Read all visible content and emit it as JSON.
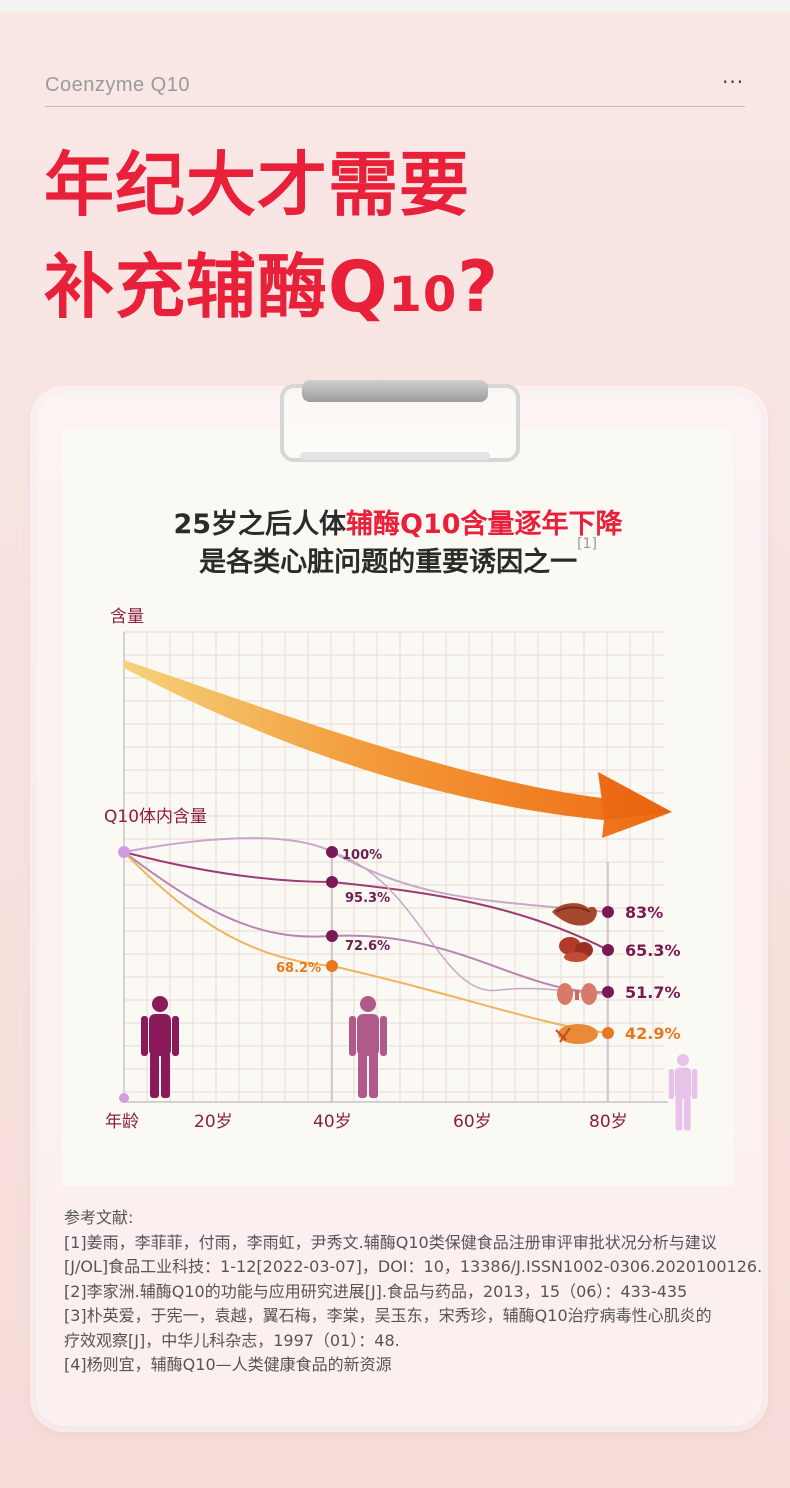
{
  "brand": "Coenzyme Q10",
  "menu_dots": "···",
  "headline": {
    "line1": "年纪大才需要",
    "line2_main": "补充辅酶Q",
    "line2_small": "10",
    "line2_end": "?"
  },
  "subheadline": {
    "line1_black": "25岁之后人体",
    "line1_red": "辅酶Q10含量逐年下降",
    "line2": "是各类心脏问题的重要诱因之一",
    "citation": "[1]"
  },
  "colors": {
    "accent_red": "#e8203a",
    "arrow_orange": "#f07a1a",
    "heart_purple": "#7a1a55",
    "liver_purple": "#8a2a62",
    "kidney_purple": "#a04a78",
    "lung_orange": "#e8781c"
  },
  "chart_data": {
    "type": "line",
    "ylabel": "含量",
    "series_caption": "Q10体内含量",
    "xlabel": "年龄",
    "x_ticks": [
      "20岁",
      "40岁",
      "60岁",
      "80岁"
    ],
    "icons": [
      "heart-icon",
      "liver-icon",
      "kidney-icon",
      "lung-icon",
      "human-figure-icon"
    ],
    "series": [
      {
        "values_at_40": "100%",
        "values_at_80": "83%",
        "organ": "heart-icon"
      },
      {
        "values_at_40": "95.3%",
        "values_at_80": "65.3%",
        "organ": "liver-icon"
      },
      {
        "values_at_40": "72.6%",
        "values_at_80": "51.7%",
        "organ": "kidney-icon"
      },
      {
        "values_at_40": "68.2%",
        "values_at_80": "42.9%",
        "organ": "lung-icon"
      }
    ],
    "labels_40": [
      "100%",
      "95.3%",
      "72.6%",
      "68.2%"
    ],
    "labels_80": [
      "83%",
      "65.3%",
      "51.7%",
      "42.9%"
    ]
  },
  "references": {
    "title": "参考文献:",
    "lines": [
      "[1]姜雨，李菲菲，付雨，李雨虹，尹秀文.辅酶Q10类保健食品注册审评审批状况分析与建议",
      "[J/OL]食品工业科技：1-12[2022-03-07]，DOI：10，13386/J.ISSN1002-0306.2020100126.",
      "[2]李家洲.辅酶Q10的功能与应用研究进展[J].食品与药品，2013，15（06）：433-435",
      "[3]朴英爱，于宪一，袁越，翼石梅，李棠，吴玉东，宋秀珍，辅酶Q10治疗病毒性心肌炎的",
      "疗效观察[J]，中华儿科杂志，1997（01）：48.",
      "[4]杨则宜，辅酶Q10—人类健康食品的新资源"
    ]
  }
}
